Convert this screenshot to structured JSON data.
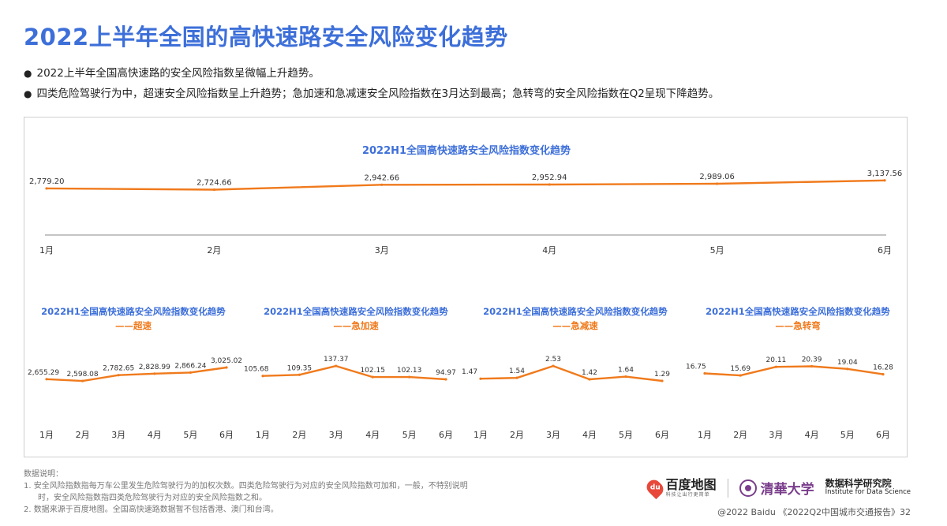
{
  "page": {
    "title": "2022上半年全国的高快速路安全风险变化趋势",
    "bullets": [
      "2022上半年全国高快速路的安全风险指数呈微幅上升趋势。",
      "四类危险驾驶行为中，超速安全风险指数呈上升趋势；急加速和急减速安全风险指数在3月达到最高；急转弯的安全风险指数在Q2呈现下降趋势。"
    ]
  },
  "colors": {
    "title": "#3D6FD9",
    "line": "#F07A1C",
    "subtitle": "#F07A1C",
    "axis": "#333333"
  },
  "chart_data": [
    {
      "type": "line",
      "title": "2022H1全国高快速路安全风险指数变化趋势",
      "subtitle": "",
      "categories": [
        "1月",
        "2月",
        "3月",
        "4月",
        "5月",
        "6月"
      ],
      "values": [
        2779.2,
        2724.66,
        2942.66,
        2952.94,
        2989.06,
        3137.56
      ],
      "labels": [
        "2,779.20",
        "2,724.66",
        "2,942.66",
        "2,952.94",
        "2,989.06",
        "3,137.56"
      ],
      "ylim": [
        2000,
        3200
      ],
      "grid": false
    },
    {
      "type": "line",
      "title": "2022H1全国高快速路安全风险指数变化趋势",
      "subtitle": "——超速",
      "categories": [
        "1月",
        "2月",
        "3月",
        "4月",
        "5月",
        "6月"
      ],
      "values": [
        2655.29,
        2598.08,
        2782.65,
        2828.99,
        2866.24,
        3025.02
      ],
      "labels": [
        "2,655.29",
        "2,598.08",
        "2,782.65",
        "2,828.99",
        "2,866.24",
        "3,025.02"
      ],
      "ylim": [
        2300,
        3100
      ],
      "grid": false
    },
    {
      "type": "line",
      "title": "2022H1全国高快速路安全风险指数变化趋势",
      "subtitle": "——急加速",
      "categories": [
        "1月",
        "2月",
        "3月",
        "4月",
        "5月",
        "6月"
      ],
      "values": [
        105.68,
        109.35,
        137.37,
        102.15,
        102.13,
        94.97
      ],
      "labels": [
        "105.68",
        "109.35",
        "137.37",
        "102.15",
        "102.13",
        "94.97"
      ],
      "ylim": [
        60,
        140
      ],
      "grid": false
    },
    {
      "type": "line",
      "title": "2022H1全国高快速路安全风险指数变化趋势",
      "subtitle": "——急减速",
      "categories": [
        "1月",
        "2月",
        "3月",
        "4月",
        "5月",
        "6月"
      ],
      "values": [
        1.47,
        1.54,
        2.53,
        1.42,
        1.64,
        1.29
      ],
      "labels": [
        "1.47",
        "1.54",
        "2.53",
        "1.42",
        "1.64",
        "1.29"
      ],
      "ylim": [
        0.5,
        2.6
      ],
      "grid": false
    },
    {
      "type": "line",
      "title": "2022H1全国高快速路安全风险指数变化趋势",
      "subtitle": "——急转弯",
      "categories": [
        "1月",
        "2月",
        "3月",
        "4月",
        "5月",
        "6月"
      ],
      "values": [
        16.75,
        15.69,
        20.11,
        20.39,
        19.04,
        16.28
      ],
      "labels": [
        "16.75",
        "15.69",
        "20.11",
        "20.39",
        "19.04",
        "16.28"
      ],
      "ylim": [
        8,
        21
      ],
      "grid": false
    }
  ],
  "notes": {
    "heading": "数据说明：",
    "items": [
      "1.    安全风险指数指每万车公里发生危险驾驶行为的加权次数。四类危险驾驶行为对应的安全风险指数可加和，一般，不特别说明",
      "时，安全风险指数指四类危险驾驶行为对应的安全风险指数之和。",
      "2.    数据来源于百度地图。全国高快速路数据暂不包括香港、澳门和台湾。"
    ]
  },
  "logos": {
    "baidu_name": "百度地图",
    "baidu_sub": "科技让出行更简单",
    "baidu_icon": "map-pin-icon",
    "thu_name": "清華大学",
    "thu_icon": "tsinghua-seal-icon",
    "ids_cn": "数据科学研究院",
    "ids_en": "Institute for Data Science"
  },
  "footer": "@2022 Baidu 《2022Q2中国城市交通报告》32"
}
